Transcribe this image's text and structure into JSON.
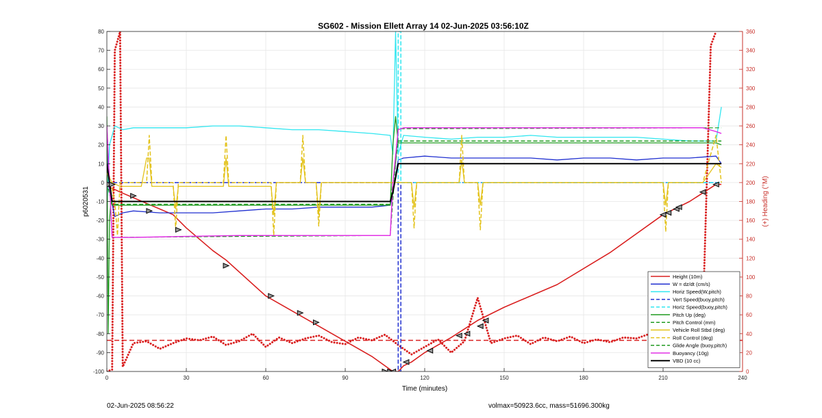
{
  "footer": {
    "left_text": "02-Jun-2025 08:56:22",
    "right_text": "volmax=50923.6cc, mass=51696.300kg"
  },
  "chart_data": {
    "type": "line",
    "title": "SG602 - Mission Ellett Array 14 02-Jun-2025 03:56:10Z",
    "xlabel": "Time (minutes)",
    "ylabel": "p6020531",
    "y2label": "(+) Heading (°M)",
    "xlim": [
      0,
      240
    ],
    "ylim": [
      -100,
      80
    ],
    "y2lim": [
      0,
      360
    ],
    "xticks": [
      0,
      30,
      60,
      90,
      120,
      150,
      180,
      210,
      240
    ],
    "yticks": [
      -100,
      -90,
      -80,
      -70,
      -60,
      -50,
      -40,
      -30,
      -20,
      -10,
      0,
      10,
      20,
      30,
      40,
      50,
      60,
      70,
      80
    ],
    "y2ticks": [
      0,
      20,
      40,
      60,
      80,
      100,
      120,
      140,
      160,
      180,
      200,
      220,
      240,
      260,
      280,
      300,
      320,
      340,
      360
    ],
    "grid": true,
    "legend_position": "bottom-right",
    "colors": {
      "red": "#d91f1f",
      "blue": "#1f2fd0",
      "cyan": "#2fe6f0",
      "green": "#1f9a1f",
      "yellow": "#e3c21a",
      "magenta": "#e22fe6",
      "black": "#000000",
      "axis2": "#c8302a"
    },
    "series": [
      {
        "name": "Height (10m)",
        "color": "#d91f1f",
        "style": "solid",
        "width": 1.6,
        "x": [
          0,
          2,
          5,
          10,
          15,
          20,
          25,
          30,
          40,
          45,
          60,
          75,
          90,
          100,
          108,
          110,
          112,
          115,
          120,
          130,
          140,
          150,
          170,
          190,
          210,
          220,
          230,
          232
        ],
        "y": [
          -2,
          -3,
          -5,
          -8,
          -11,
          -14,
          -17,
          -24,
          -36,
          -41,
          -60,
          -72,
          -84,
          -92,
          -100,
          -100,
          -97,
          -95,
          -90,
          -82,
          -73,
          -66,
          -54,
          -37,
          -17,
          -10,
          -1,
          -1
        ]
      },
      {
        "name": "W = dz/dt (cm/s)",
        "color": "#1f2fd0",
        "style": "solid",
        "width": 1.3,
        "x": [
          0,
          1,
          3,
          6,
          10,
          20,
          30,
          40,
          50,
          60,
          70,
          80,
          90,
          100,
          107,
          108,
          110,
          112,
          120,
          130,
          140,
          150,
          160,
          170,
          180,
          190,
          200,
          210,
          220,
          230,
          232
        ],
        "y": [
          20,
          -5,
          -18,
          -16,
          -15,
          -16,
          -16,
          -16,
          -15,
          -14,
          -14,
          -13,
          -13,
          -13,
          -12,
          -5,
          12,
          13,
          14,
          13,
          13,
          13,
          13,
          12,
          13,
          13,
          12,
          13,
          13,
          14,
          10
        ]
      },
      {
        "name": "Horiz Speed(W,pitch)",
        "color": "#2fe6f0",
        "style": "solid",
        "width": 1.3,
        "x": [
          0,
          1,
          3,
          6,
          10,
          20,
          30,
          40,
          50,
          60,
          70,
          80,
          90,
          100,
          107,
          108,
          109,
          110,
          112,
          120,
          130,
          140,
          150,
          160,
          170,
          180,
          190,
          200,
          210,
          220,
          230,
          232
        ],
        "y": [
          -15,
          20,
          30,
          28,
          29,
          29,
          29,
          30,
          30,
          29,
          28,
          28,
          27,
          26,
          25,
          15,
          80,
          15,
          25,
          24,
          23,
          24,
          24,
          25,
          24,
          24,
          24,
          24,
          23,
          22,
          22,
          40
        ]
      },
      {
        "name": "Vert Speed(buoy,pitch)",
        "color": "#1f2fd0",
        "style": "dashed",
        "width": 1.5,
        "x": [
          0,
          108,
          110,
          110,
          111,
          111,
          232
        ],
        "y": [
          0,
          0,
          0,
          -100,
          -100,
          0,
          0
        ]
      },
      {
        "name": "Horiz Speed(buoy,pitch)",
        "color": "#2fe6f0",
        "style": "dashed",
        "width": 1.5,
        "x": [
          109,
          110,
          110,
          111,
          111,
          232
        ],
        "y": [
          0,
          0,
          80,
          80,
          0,
          0
        ]
      },
      {
        "name": "Pitch Up (deg)",
        "color": "#1f9a1f",
        "style": "solid",
        "width": 1.3,
        "x": [
          0,
          0.5,
          1,
          1.5,
          2,
          3,
          10,
          50,
          100,
          107,
          108,
          109,
          110,
          112,
          130,
          180,
          230,
          232
        ],
        "y": [
          35,
          -80,
          -20,
          -10,
          -12,
          -12,
          -12,
          -12,
          -12,
          -12,
          20,
          35,
          21,
          21,
          21,
          21,
          21,
          20
        ]
      },
      {
        "name": "Pitch Control (mm)",
        "color": "#1f9a1f",
        "style": "dashed",
        "width": 1.5,
        "x": [
          0,
          2,
          50,
          107,
          110,
          112,
          232
        ],
        "y": [
          0,
          -11.5,
          -11.5,
          -11.5,
          22,
          22,
          22
        ]
      },
      {
        "name": "Vehicle Roll Stbd (deg)",
        "color": "#e3c21a",
        "style": "solid",
        "width": 1.3,
        "x": [
          0,
          2,
          5,
          13,
          15,
          16,
          17,
          25,
          26,
          27,
          44,
          45,
          46,
          62,
          63,
          64,
          73,
          74,
          75,
          79,
          80,
          81,
          107,
          110,
          115,
          116,
          117,
          133,
          134,
          135,
          140,
          141,
          142,
          210,
          211,
          212,
          225,
          230,
          232
        ],
        "y": [
          5,
          0,
          -2,
          -2,
          13,
          13,
          -2,
          -2,
          -14,
          -2,
          -2,
          13,
          -2,
          -2,
          -17,
          0,
          0,
          13,
          0,
          0,
          -17,
          0,
          0,
          0,
          0,
          -13,
          0,
          0,
          12,
          0,
          0,
          -12,
          0,
          0,
          -12,
          0,
          0,
          10,
          8
        ]
      },
      {
        "name": "Roll Control (deg)",
        "color": "#e3c21a",
        "style": "dashed",
        "width": 1.5,
        "x": [
          0,
          3,
          4,
          5,
          15,
          16,
          17,
          25,
          26,
          27,
          44,
          45,
          46,
          62,
          63,
          64,
          73,
          74,
          75,
          79,
          80,
          81,
          107,
          110,
          115,
          116,
          117,
          133,
          134,
          135,
          140,
          141,
          142,
          210,
          211,
          212,
          225,
          230,
          232
        ],
        "y": [
          10,
          -10,
          -28,
          0,
          0,
          25,
          0,
          0,
          -25,
          0,
          0,
          25,
          0,
          0,
          -28,
          0,
          0,
          25,
          0,
          0,
          -23,
          0,
          0,
          0,
          0,
          -24,
          0,
          0,
          25,
          0,
          0,
          -25,
          0,
          0,
          -26,
          0,
          0,
          25,
          0
        ]
      },
      {
        "name": "Glide Angle (buoy,pitch)",
        "color": "#1f9a1f",
        "style": "dashed",
        "width": 1.2,
        "x": [
          0,
          2,
          50,
          107,
          110,
          232
        ],
        "y": [
          30,
          -29,
          -28.5,
          -28,
          28.5,
          29
        ]
      },
      {
        "name": "Buoyancy (10g)",
        "color": "#e22fe6",
        "style": "solid",
        "width": 1.5,
        "x": [
          0,
          2,
          10,
          50,
          107,
          108,
          110,
          112,
          150,
          200,
          225,
          230,
          232
        ],
        "y": [
          30,
          -29,
          -29,
          -28,
          -28,
          0,
          28,
          29,
          29,
          29,
          29,
          27,
          26
        ]
      },
      {
        "name": "VBD (10 cc)",
        "color": "#000000",
        "style": "solid",
        "width": 2,
        "x": [
          0,
          2,
          107,
          108,
          110,
          112,
          232
        ],
        "y": [
          10,
          -10,
          -10,
          -5,
          10,
          10,
          10
        ]
      }
    ],
    "heading": {
      "name": "Heading (°M)",
      "color": "#d91f1f",
      "axis": "right",
      "style": "dotted",
      "x": [
        0,
        2,
        3,
        4,
        5,
        6,
        10,
        15,
        20,
        25,
        30,
        35,
        40,
        45,
        50,
        55,
        60,
        65,
        70,
        75,
        80,
        85,
        90,
        95,
        100,
        105,
        110,
        115,
        120,
        125,
        130,
        135,
        140,
        145,
        150,
        155,
        160,
        165,
        170,
        175,
        180,
        185,
        190,
        195,
        200,
        205,
        210,
        215,
        220,
        225,
        228,
        230
      ],
      "y": [
        0,
        2,
        340,
        350,
        360,
        5,
        30,
        32,
        24,
        30,
        35,
        33,
        37,
        28,
        32,
        40,
        26,
        36,
        30,
        35,
        38,
        31,
        29,
        36,
        33,
        39,
        28,
        18,
        26,
        34,
        20,
        32,
        78,
        30,
        35,
        38,
        29,
        36,
        32,
        37,
        30,
        34,
        31,
        36,
        35,
        40,
        30,
        20,
        25,
        55,
        345,
        360
      ]
    },
    "reference_line": {
      "name": "Heading reference",
      "color": "#d91f1f",
      "style": "dashed",
      "axis": "right",
      "value": 33
    },
    "markers": {
      "series": "Height (10m)",
      "points": [
        [
          1,
          -1
        ],
        [
          2,
          -1
        ],
        [
          10,
          -7
        ],
        [
          16,
          -15
        ],
        [
          27,
          -25
        ],
        [
          45,
          -44
        ],
        [
          62,
          -60
        ],
        [
          73,
          -69
        ],
        [
          79,
          -74
        ],
        [
          105,
          -100
        ],
        [
          107,
          -100
        ],
        [
          108,
          -100
        ],
        [
          113,
          -95
        ],
        [
          122,
          -89
        ],
        [
          133,
          -81
        ],
        [
          136,
          -80
        ],
        [
          141,
          -76
        ],
        [
          143,
          -73
        ],
        [
          210,
          -17
        ],
        [
          212,
          -16
        ],
        [
          215,
          -14
        ],
        [
          216,
          -13
        ],
        [
          225,
          -5
        ],
        [
          230,
          -1
        ]
      ]
    }
  }
}
